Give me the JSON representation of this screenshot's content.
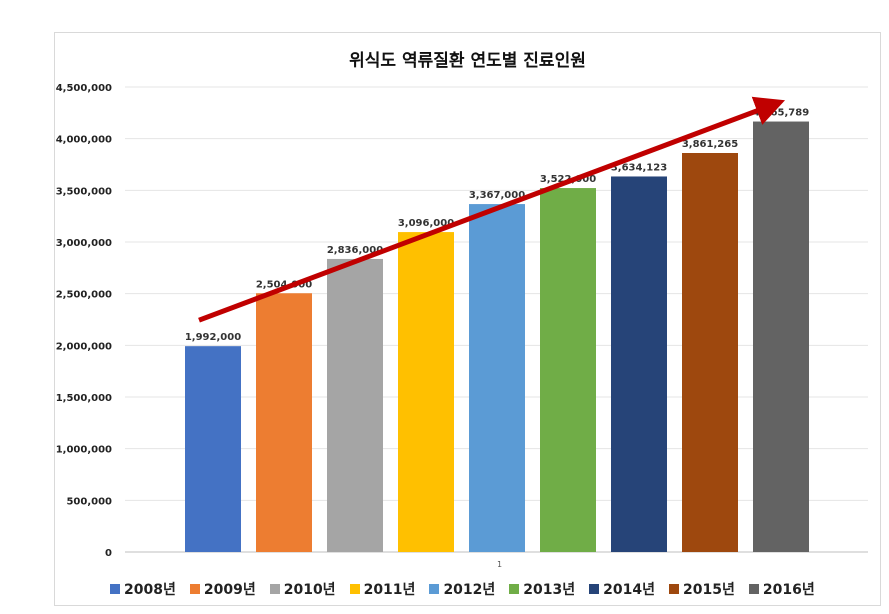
{
  "chart_data": {
    "type": "bar",
    "title": "위식도 역류질환 연도별 진료인원",
    "categories": [
      "2008년",
      "2009년",
      "2010년",
      "2011년",
      "2012년",
      "2013년",
      "2014년",
      "2015년",
      "2016년"
    ],
    "values": [
      1992000,
      2504000,
      2836000,
      3096000,
      3367000,
      3522000,
      3634123,
      3861265,
      4165789
    ],
    "value_labels": [
      "1,992,000",
      "2,504,000",
      "2,836,000",
      "3,096,000",
      "3,367,000",
      "3,522,000",
      "3,634,123",
      "3,861,265",
      "4,165,789"
    ],
    "colors": [
      "#4472c4",
      "#ed7d31",
      "#a5a5a5",
      "#ffc000",
      "#5b9bd5",
      "#70ad47",
      "#264478",
      "#9e480e",
      "#636363"
    ],
    "ylim": [
      0,
      4500000
    ],
    "yticks": [
      0,
      500000,
      1000000,
      1500000,
      2000000,
      2500000,
      3000000,
      3500000,
      4000000,
      4500000
    ],
    "ytick_labels": [
      "0",
      "500,000",
      "1,000,000",
      "1,500,000",
      "2,000,000",
      "2,500,000",
      "3,000,000",
      "3,500,000",
      "4,000,000",
      "4,500,000"
    ],
    "xtick_label": "1",
    "grid": true,
    "legend_position": "bottom",
    "trend_arrow_color": "#c00000"
  }
}
